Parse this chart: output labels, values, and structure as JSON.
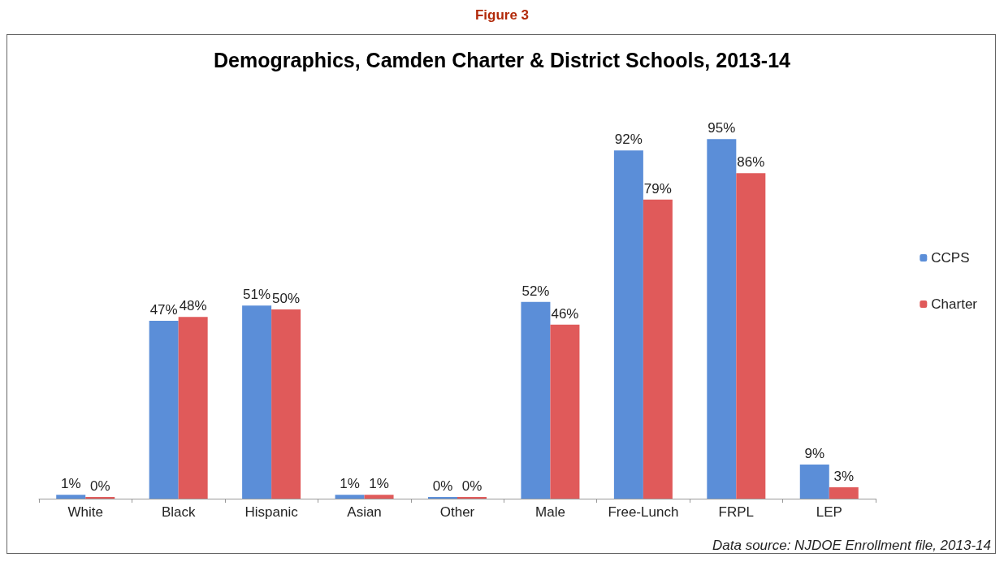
{
  "chart_data": {
    "type": "bar",
    "title": "Demographics, Camden Charter & District Schools, 2013-14",
    "categories": [
      "White",
      "Black",
      "Hispanic",
      "Asian",
      "Other",
      "Male",
      "Free-Lunch",
      "FRPL",
      "LEP"
    ],
    "series": [
      {
        "name": "CCPS",
        "color": "#5b8ed8",
        "values": [
          1,
          47,
          51,
          1,
          0,
          52,
          92,
          95,
          9
        ],
        "value_labels": [
          "1%",
          "47%",
          "51%",
          "1%",
          "0%",
          "52%",
          "92%",
          "95%",
          "9%"
        ]
      },
      {
        "name": "Charter",
        "color": "#e05a5a",
        "values": [
          0,
          48,
          50,
          1,
          0,
          46,
          79,
          86,
          3
        ],
        "value_labels": [
          "0%",
          "48%",
          "50%",
          "1%",
          "0%",
          "46%",
          "79%",
          "86%",
          "3%"
        ]
      }
    ],
    "legend": "right",
    "annotations": [
      "Figure 3",
      "Data source: NJDOE Enrollment file, 2013-14"
    ]
  }
}
